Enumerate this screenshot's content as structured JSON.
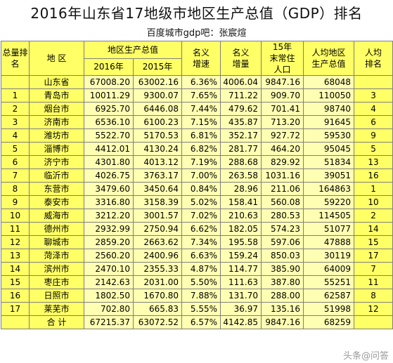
{
  "title": "2016年山东省17地级市地区生产总值（GDP）排名",
  "subtitle": "百度城市gdp吧：张宸煊",
  "headers": {
    "rank_total": "总量排名",
    "region": "地 区",
    "gdp_group": "地区生产总值",
    "y2016": "2016年",
    "y2015": "2015年",
    "nominal_growth": "名义增速",
    "nominal_increase": "名义增量",
    "population": "15年末常住人口",
    "per_capita": "人均地区生产总值",
    "per_capita_rank": "人均排名"
  },
  "rows": [
    {
      "rank": "",
      "region": "山东省",
      "gdp2016": "67008.20",
      "gdp2015": "63002.16",
      "growth": "6.36%",
      "increase": "4006.04",
      "population": "9847.16",
      "per_capita": "68048",
      "pc_rank": ""
    },
    {
      "rank": "1",
      "region": "青岛市",
      "gdp2016": "10011.29",
      "gdp2015": "9300.07",
      "growth": "7.65%",
      "increase": "711.22",
      "population": "909.70",
      "per_capita": "110050",
      "pc_rank": "3"
    },
    {
      "rank": "2",
      "region": "烟台市",
      "gdp2016": "6925.70",
      "gdp2015": "6446.08",
      "growth": "7.44%",
      "increase": "479.62",
      "population": "701.41",
      "per_capita": "98740",
      "pc_rank": "4"
    },
    {
      "rank": "3",
      "region": "济南市",
      "gdp2016": "6536.10",
      "gdp2015": "6100.23",
      "growth": "7.15%",
      "increase": "435.87",
      "population": "713.20",
      "per_capita": "91645",
      "pc_rank": "6"
    },
    {
      "rank": "4",
      "region": "潍坊市",
      "gdp2016": "5522.70",
      "gdp2015": "5170.53",
      "growth": "6.81%",
      "increase": "352.17",
      "population": "927.72",
      "per_capita": "59530",
      "pc_rank": "9"
    },
    {
      "rank": "5",
      "region": "淄博市",
      "gdp2016": "4412.01",
      "gdp2015": "4130.24",
      "growth": "6.82%",
      "increase": "281.77",
      "population": "464.20",
      "per_capita": "95045",
      "pc_rank": "5"
    },
    {
      "rank": "6",
      "region": "济宁市",
      "gdp2016": "4301.80",
      "gdp2015": "4013.12",
      "growth": "7.19%",
      "increase": "288.68",
      "population": "829.92",
      "per_capita": "51834",
      "pc_rank": "13"
    },
    {
      "rank": "7",
      "region": "临沂市",
      "gdp2016": "4026.75",
      "gdp2015": "3763.17",
      "growth": "7.00%",
      "increase": "263.58",
      "population": "1031.16",
      "per_capita": "39051",
      "pc_rank": "16"
    },
    {
      "rank": "8",
      "region": "东营市",
      "gdp2016": "3479.60",
      "gdp2015": "3450.64",
      "growth": "0.84%",
      "increase": "28.96",
      "population": "211.06",
      "per_capita": "164863",
      "pc_rank": "1"
    },
    {
      "rank": "9",
      "region": "泰安市",
      "gdp2016": "3316.80",
      "gdp2015": "3158.39",
      "growth": "5.02%",
      "increase": "158.41",
      "population": "560.08",
      "per_capita": "59220",
      "pc_rank": "10"
    },
    {
      "rank": "10",
      "region": "威海市",
      "gdp2016": "3212.20",
      "gdp2015": "3001.57",
      "growth": "7.02%",
      "increase": "210.63",
      "population": "280.53",
      "per_capita": "114505",
      "pc_rank": "2"
    },
    {
      "rank": "11",
      "region": "德州市",
      "gdp2016": "2932.99",
      "gdp2015": "2750.94",
      "growth": "6.62%",
      "increase": "182.05",
      "population": "574.23",
      "per_capita": "51077",
      "pc_rank": "14"
    },
    {
      "rank": "12",
      "region": "聊城市",
      "gdp2016": "2859.20",
      "gdp2015": "2663.62",
      "growth": "7.34%",
      "increase": "195.58",
      "population": "597.06",
      "per_capita": "47888",
      "pc_rank": "15"
    },
    {
      "rank": "13",
      "region": "菏泽市",
      "gdp2016": "2560.20",
      "gdp2015": "2400.96",
      "growth": "6.63%",
      "increase": "159.24",
      "population": "850.03",
      "per_capita": "30119",
      "pc_rank": "17"
    },
    {
      "rank": "14",
      "region": "滨州市",
      "gdp2016": "2470.10",
      "gdp2015": "2355.33",
      "growth": "4.87%",
      "increase": "114.77",
      "population": "385.90",
      "per_capita": "64009",
      "pc_rank": "7"
    },
    {
      "rank": "15",
      "region": "枣庄市",
      "gdp2016": "2142.63",
      "gdp2015": "2031.00",
      "growth": "5.50%",
      "increase": "111.63",
      "population": "387.80",
      "per_capita": "55251",
      "pc_rank": "11"
    },
    {
      "rank": "16",
      "region": "日照市",
      "gdp2016": "1802.50",
      "gdp2015": "1670.80",
      "growth": "7.88%",
      "increase": "131.70",
      "population": "288.00",
      "per_capita": "62587",
      "pc_rank": "8"
    },
    {
      "rank": "17",
      "region": "莱芜市",
      "gdp2016": "702.80",
      "gdp2015": "665.83",
      "growth": "5.55%",
      "increase": "36.97",
      "population": "135.16",
      "per_capita": "51998",
      "pc_rank": "12"
    },
    {
      "rank": "",
      "region": "合 计",
      "gdp2016": "67215.37",
      "gdp2015": "63072.52",
      "growth": "6.57%",
      "increase": "4142.85",
      "population": "9847.16",
      "per_capita": "68259",
      "pc_rank": ""
    }
  ],
  "watermark": "头条@问答"
}
